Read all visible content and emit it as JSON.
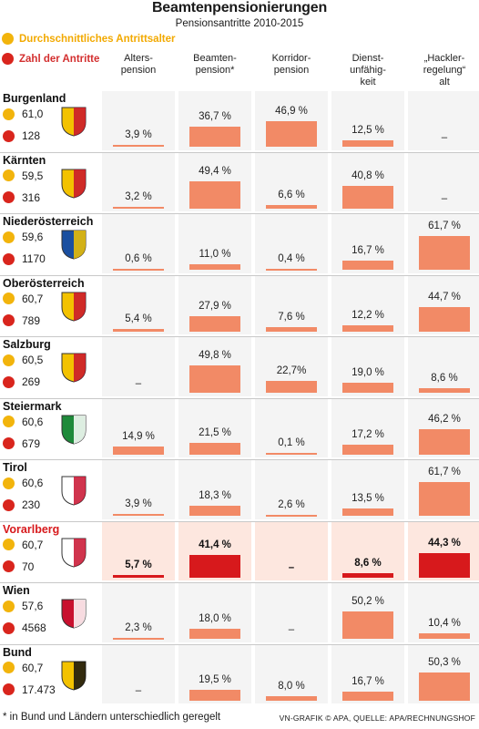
{
  "header": {
    "title": "Beamtenpensionierungen",
    "subtitle": "Pensionsantritte 2010-2015"
  },
  "legend": {
    "age_label": "Durchschnittliches Antrittsalter",
    "count_label": "Zahl der Antritte",
    "age_color": "#f2b40c",
    "count_color": "#d9251d"
  },
  "footer": {
    "footnote": "* in Bund und Ländern unterschiedlich geregelt",
    "source": "VN-GRAFIK © APA, QUELLE: APA/RECHNUNGSHOF"
  },
  "chart_data": {
    "type": "table",
    "title": "Beamtenpensionierungen",
    "subtitle": "Pensionsantritte 2010-2015",
    "columns": [
      {
        "line1": "Alters-",
        "line2": "pension"
      },
      {
        "line1": "Beamten-",
        "line2": "pension*"
      },
      {
        "line1": "Korridor-",
        "line2": "pension"
      },
      {
        "line1": "Dienst-",
        "line2": "unfähig-",
        "line3": "keit"
      },
      {
        "line1": "„Hackler-",
        "line2": "regelung“",
        "line3": "alt"
      }
    ],
    "highlight_color": "#d7191c",
    "bar_color": "#f28a66",
    "rows": [
      {
        "name": "Burgenland",
        "age": "61,0",
        "count": "128",
        "crest": "burgenland-crest",
        "highlight": false,
        "values": [
          3.9,
          36.7,
          46.9,
          12.5,
          null
        ],
        "labels": [
          "3,9 %",
          "36,7 %",
          "46,9 %",
          "12,5 %",
          "–"
        ]
      },
      {
        "name": "Kärnten",
        "age": "59,5",
        "count": "316",
        "crest": "kaernten-crest",
        "highlight": false,
        "values": [
          3.2,
          49.4,
          6.6,
          40.8,
          null
        ],
        "labels": [
          "3,2 %",
          "49,4 %",
          "6,6 %",
          "40,8 %",
          "–"
        ]
      },
      {
        "name": "Niederösterreich",
        "age": "59,6",
        "count": "1170",
        "crest": "niederoesterreich-crest",
        "highlight": false,
        "values": [
          0.6,
          11.0,
          0.4,
          16.7,
          61.7
        ],
        "labels": [
          "0,6 %",
          "11,0 %",
          "0,4 %",
          "16,7 %",
          "61,7 %"
        ]
      },
      {
        "name": "Oberösterreich",
        "age": "60,7",
        "count": "789",
        "crest": "oberoesterreich-crest",
        "highlight": false,
        "values": [
          5.4,
          27.9,
          7.6,
          12.2,
          44.7
        ],
        "labels": [
          "5,4 %",
          "27,9 %",
          "7,6 %",
          "12,2 %",
          "44,7 %"
        ]
      },
      {
        "name": "Salzburg",
        "age": "60,5",
        "count": "269",
        "crest": "salzburg-crest",
        "highlight": false,
        "values": [
          null,
          49.8,
          22.7,
          19.0,
          8.6
        ],
        "labels": [
          "–",
          "49,8 %",
          "22,7%",
          "19,0 %",
          "8,6 %"
        ]
      },
      {
        "name": "Steiermark",
        "age": "60,6",
        "count": "679",
        "crest": "steiermark-crest",
        "highlight": false,
        "values": [
          14.9,
          21.5,
          0.1,
          17.2,
          46.2
        ],
        "labels": [
          "14,9 %",
          "21,5 %",
          "0,1 %",
          "17,2 %",
          "46,2 %"
        ]
      },
      {
        "name": "Tirol",
        "age": "60,6",
        "count": "230",
        "crest": "tirol-crest",
        "highlight": false,
        "values": [
          3.9,
          18.3,
          2.6,
          13.5,
          61.7
        ],
        "labels": [
          "3,9 %",
          "18,3 %",
          "2,6 %",
          "13,5 %",
          "61,7 %"
        ]
      },
      {
        "name": "Vorarlberg",
        "age": "60,7",
        "count": "70",
        "crest": "vorarlberg-crest",
        "highlight": true,
        "values": [
          5.7,
          41.4,
          null,
          8.6,
          44.3
        ],
        "labels": [
          "5,7 %",
          "41,4 %",
          "–",
          "8,6 %",
          "44,3 %"
        ]
      },
      {
        "name": "Wien",
        "age": "57,6",
        "count": "4568",
        "crest": "wien-crest",
        "highlight": false,
        "values": [
          2.3,
          18.0,
          null,
          50.2,
          10.4
        ],
        "labels": [
          "2,3 %",
          "18,0 %",
          "–",
          "50,2 %",
          "10,4 %"
        ]
      },
      {
        "name": "Bund",
        "age": "60,7",
        "count": "17.473",
        "crest": "bund-crest",
        "highlight": false,
        "values": [
          null,
          19.5,
          8.0,
          16.7,
          50.3
        ],
        "labels": [
          "–",
          "19,5 %",
          "8,0 %",
          "16,7 %",
          "50,3 %"
        ]
      }
    ]
  }
}
